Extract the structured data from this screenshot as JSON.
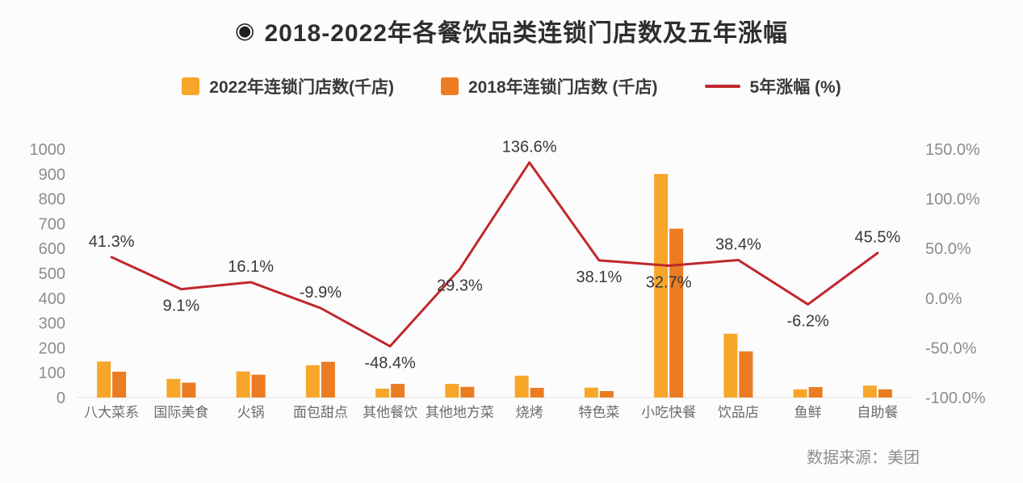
{
  "page": {
    "title": "2018-2022年各餐饮品类连锁门店数及五年涨幅",
    "title_icon": "◉",
    "source_note": "数据来源：美团"
  },
  "legend": [
    {
      "label": "2022年连锁门店数(千店)",
      "type": "square",
      "color": "#F8A62A"
    },
    {
      "label": "2018年连锁门店数 (千店)",
      "type": "square",
      "color": "#EC7C21"
    },
    {
      "label": "5年涨幅 (%)",
      "type": "line",
      "color": "#C0282D"
    }
  ],
  "chart_data": {
    "type": "bar",
    "subtype": "grouped-bar-with-line",
    "title": "2018-2022年各餐饮品类连锁门店数及五年涨幅",
    "categories": [
      "八大菜系",
      "国际美食",
      "火锅",
      "面包甜点",
      "其他餐饮",
      "其他地方菜",
      "烧烤",
      "特色菜",
      "小吃快餐",
      "饮品店",
      "鱼鲜",
      "自助餐"
    ],
    "series": [
      {
        "name": "2022年连锁门店数(千店)",
        "axis": "left",
        "color": "#F8A62A",
        "values": [
          145,
          75,
          105,
          130,
          36,
          55,
          88,
          40,
          900,
          257,
          33,
          48
        ]
      },
      {
        "name": "2018年连锁门店数 (千店)",
        "axis": "left",
        "color": "#EC7C21",
        "values": [
          104,
          60,
          92,
          144,
          55,
          43,
          39,
          26,
          680,
          186,
          42,
          33
        ]
      }
    ],
    "line": {
      "name": "5年涨幅 (%)",
      "axis": "right",
      "color": "#C0282D",
      "values": [
        41.3,
        9.1,
        16.1,
        -9.9,
        -48.4,
        29.3,
        136.6,
        38.1,
        32.7,
        38.4,
        -6.2,
        45.5
      ],
      "labels": [
        "41.3%",
        "9.1%",
        "16.1%",
        "-9.9%",
        "-48.4%",
        "29.3%",
        "136.6%",
        "38.1%",
        "32.7%",
        "38.4%",
        "-6.2%",
        "45.5%"
      ],
      "label_side": [
        "above",
        "below",
        "above",
        "above",
        "below",
        "below",
        "above",
        "below",
        "below",
        "above",
        "below",
        "above"
      ]
    },
    "left_axis": {
      "min": 0,
      "max": 1000,
      "ticks": [
        0,
        100,
        200,
        300,
        400,
        500,
        600,
        700,
        800,
        900,
        1000
      ]
    },
    "right_axis": {
      "min": -100,
      "max": 150,
      "ticks": [
        {
          "value": 150,
          "label": "150.0%"
        },
        {
          "value": 100,
          "label": "100.0%"
        },
        {
          "value": 50,
          "label": "50.0%"
        },
        {
          "value": 0,
          "label": "0.0%"
        },
        {
          "value": -50,
          "label": "-50.0%"
        },
        {
          "value": -100,
          "label": "-100.0%"
        }
      ]
    },
    "grid": false,
    "legend_position": "top"
  }
}
